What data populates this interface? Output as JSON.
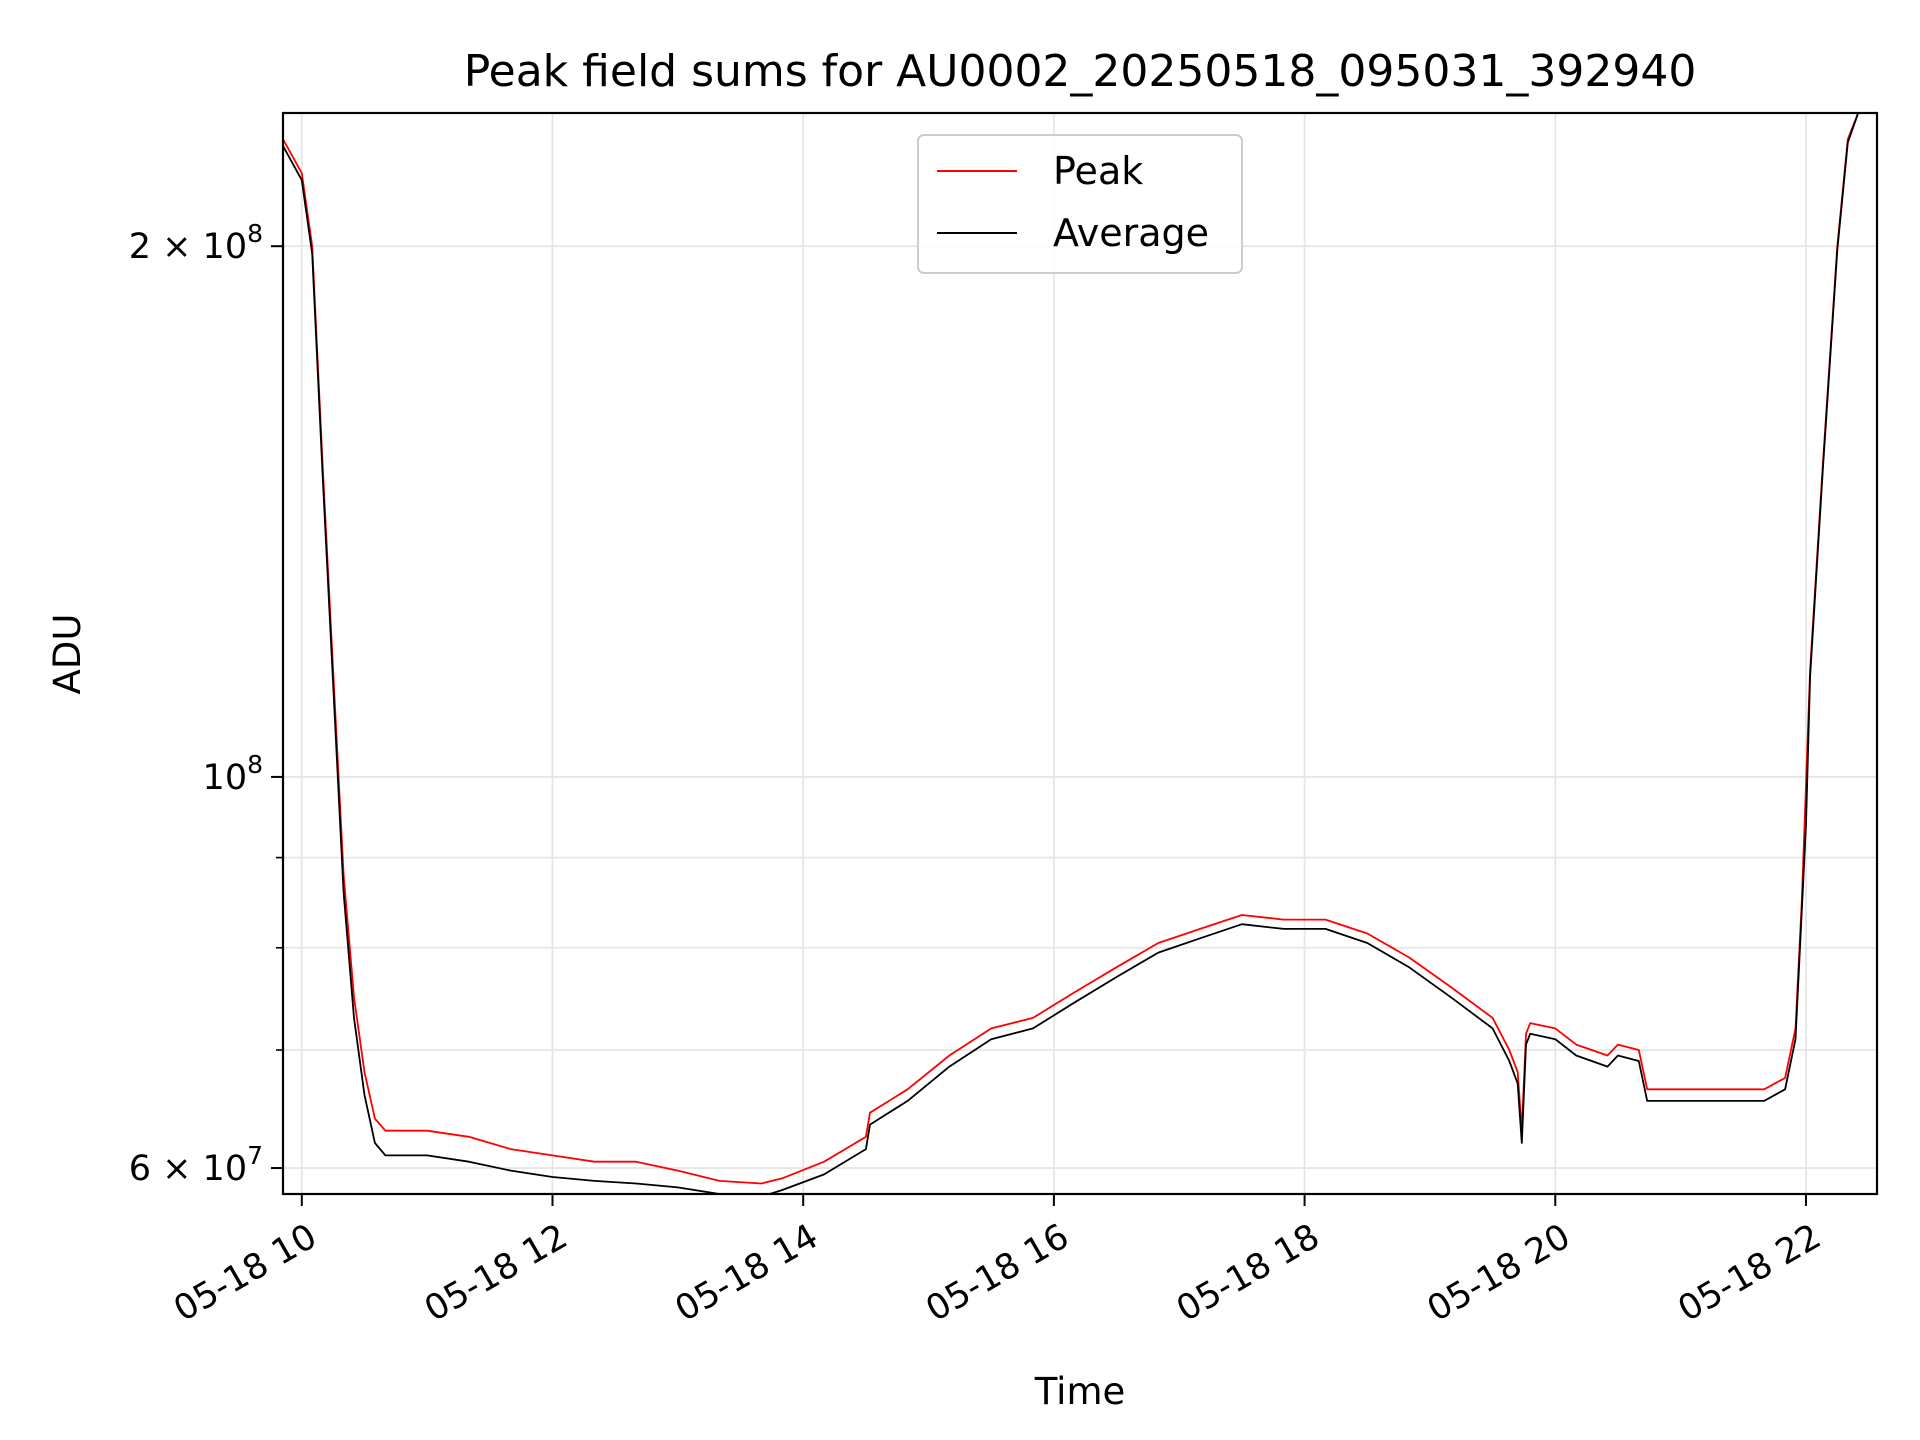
{
  "chart_data": {
    "type": "line",
    "title": "Peak field sums for AU0002_20250518_095031_392940",
    "xlabel": "Time",
    "ylabel": "ADU",
    "yscale": "log",
    "xlim": [
      "05-18 09:51",
      "05-18 22:34"
    ],
    "ylim": [
      58000000,
      238000000
    ],
    "grid": true,
    "legend": {
      "position": "top-center",
      "entries": [
        "Peak",
        "Average"
      ]
    },
    "x_ticks": [
      {
        "label": "05-18 10",
        "value": "05-18 10:00"
      },
      {
        "label": "05-18 12",
        "value": "05-18 12:00"
      },
      {
        "label": "05-18 14",
        "value": "05-18 14:00"
      },
      {
        "label": "05-18 16",
        "value": "05-18 16:00"
      },
      {
        "label": "05-18 18",
        "value": "05-18 18:00"
      },
      {
        "label": "05-18 20",
        "value": "05-18 20:00"
      },
      {
        "label": "05-18 22",
        "value": "05-18 22:00"
      }
    ],
    "y_ticks": [
      {
        "mantissa": "6",
        "times": "×",
        "base": "10",
        "exp": "7",
        "value": 60000000
      },
      {
        "mantissa": "",
        "times": "",
        "base": "10",
        "exp": "8",
        "value": 100000000
      },
      {
        "mantissa": "2",
        "times": "×",
        "base": "10",
        "exp": "8",
        "value": 200000000
      }
    ],
    "y_minor_ticks": [
      70000000,
      80000000,
      90000000
    ],
    "series": [
      {
        "name": "Peak",
        "color": "#ff0000",
        "x": [
          "05-18 09:51",
          "05-18 10:00",
          "05-18 10:05",
          "05-18 10:10",
          "05-18 10:15",
          "05-18 10:20",
          "05-18 10:25",
          "05-18 10:30",
          "05-18 10:35",
          "05-18 10:40",
          "05-18 11:00",
          "05-18 11:20",
          "05-18 11:40",
          "05-18 12:00",
          "05-18 12:20",
          "05-18 12:40",
          "05-18 13:00",
          "05-18 13:20",
          "05-18 13:40",
          "05-18 13:50",
          "05-18 14:10",
          "05-18 14:30",
          "05-18 14:32",
          "05-18 14:50",
          "05-18 15:10",
          "05-18 15:30",
          "05-18 15:50",
          "05-18 16:10",
          "05-18 16:30",
          "05-18 16:50",
          "05-18 17:10",
          "05-18 17:30",
          "05-18 17:50",
          "05-18 18:10",
          "05-18 18:30",
          "05-18 18:50",
          "05-18 19:10",
          "05-18 19:30",
          "05-18 19:38",
          "05-18 19:42",
          "05-18 19:44",
          "05-18 19:46",
          "05-18 19:48",
          "05-18 20:00",
          "05-18 20:10",
          "05-18 20:25",
          "05-18 20:30",
          "05-18 20:40",
          "05-18 20:44",
          "05-18 20:48",
          "05-18 21:00",
          "05-18 21:20",
          "05-18 21:40",
          "05-18 21:50",
          "05-18 21:55",
          "05-18 21:58",
          "05-18 22:00",
          "05-18 22:02",
          "05-18 22:08",
          "05-18 22:15",
          "05-18 22:20",
          "05-18 22:25"
        ],
        "y": [
          230000000,
          220000000,
          200000000,
          150000000,
          115000000,
          88000000,
          75000000,
          68000000,
          64000000,
          63000000,
          63000000,
          62500000,
          61500000,
          61000000,
          60500000,
          60500000,
          59800000,
          59000000,
          58800000,
          59200000,
          60500000,
          62500000,
          64500000,
          66500000,
          69500000,
          72000000,
          73000000,
          75500000,
          78000000,
          80500000,
          82000000,
          83500000,
          83000000,
          83000000,
          81500000,
          79000000,
          76000000,
          73000000,
          70000000,
          68000000,
          63000000,
          71500000,
          72500000,
          72000000,
          70500000,
          69500000,
          70500000,
          70000000,
          66500000,
          66500000,
          66500000,
          66500000,
          66500000,
          67500000,
          72000000,
          85000000,
          99000000,
          115000000,
          150000000,
          200000000,
          230000000,
          238000000
        ]
      },
      {
        "name": "Average",
        "color": "#000000",
        "x": [
          "05-18 09:51",
          "05-18 10:00",
          "05-18 10:05",
          "05-18 10:10",
          "05-18 10:15",
          "05-18 10:20",
          "05-18 10:25",
          "05-18 10:30",
          "05-18 10:35",
          "05-18 10:40",
          "05-18 11:00",
          "05-18 11:20",
          "05-18 11:40",
          "05-18 12:00",
          "05-18 12:20",
          "05-18 12:40",
          "05-18 13:00",
          "05-18 13:20",
          "05-18 13:40",
          "05-18 13:50",
          "05-18 14:10",
          "05-18 14:30",
          "05-18 14:32",
          "05-18 14:50",
          "05-18 15:10",
          "05-18 15:30",
          "05-18 15:50",
          "05-18 16:10",
          "05-18 16:30",
          "05-18 16:50",
          "05-18 17:10",
          "05-18 17:30",
          "05-18 17:50",
          "05-18 18:10",
          "05-18 18:30",
          "05-18 18:50",
          "05-18 19:10",
          "05-18 19:30",
          "05-18 19:38",
          "05-18 19:42",
          "05-18 19:44",
          "05-18 19:46",
          "05-18 19:48",
          "05-18 20:00",
          "05-18 20:10",
          "05-18 20:25",
          "05-18 20:30",
          "05-18 20:40",
          "05-18 20:44",
          "05-18 20:48",
          "05-18 21:00",
          "05-18 21:20",
          "05-18 21:40",
          "05-18 21:50",
          "05-18 21:55",
          "05-18 21:58",
          "05-18 22:00",
          "05-18 22:02",
          "05-18 22:08",
          "05-18 22:15",
          "05-18 22:20",
          "05-18 22:25"
        ],
        "y": [
          228000000,
          218000000,
          198000000,
          148000000,
          113000000,
          86000000,
          73000000,
          66000000,
          62000000,
          61000000,
          61000000,
          60500000,
          59800000,
          59300000,
          59000000,
          58800000,
          58500000,
          58000000,
          57800000,
          58300000,
          59500000,
          61500000,
          63500000,
          65500000,
          68500000,
          71000000,
          72000000,
          74500000,
          77000000,
          79500000,
          81000000,
          82500000,
          82000000,
          82000000,
          80500000,
          78000000,
          75000000,
          72000000,
          69000000,
          67000000,
          62000000,
          70500000,
          71500000,
          71000000,
          69500000,
          68500000,
          69500000,
          69000000,
          65500000,
          65500000,
          65500000,
          65500000,
          65500000,
          66500000,
          71000000,
          84000000,
          94000000,
          114000000,
          149000000,
          199000000,
          229000000,
          238000000
        ]
      }
    ]
  }
}
